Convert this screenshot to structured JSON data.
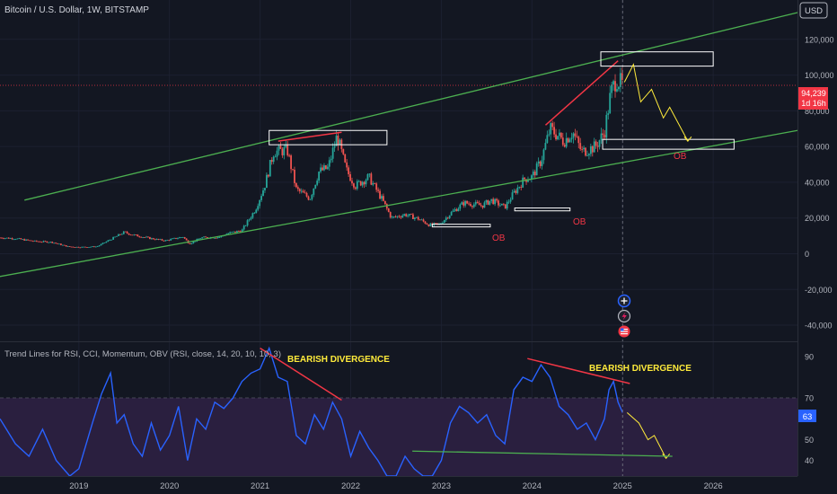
{
  "header": {
    "symbol_title": "Bitcoin / U.S. Dollar, 1W, BITSTAMP",
    "currency_button": "USD"
  },
  "price_panel": {
    "last_price": "94,239",
    "countdown": "1d 16h",
    "ob_labels": [
      "OB",
      "OB",
      "OB"
    ],
    "colors": {
      "up": "#26a69a",
      "down": "#ef5350",
      "channel": "#4caf50",
      "divergence": "#f23645",
      "projection": "#ffeb3b",
      "price_badge": "#f23645"
    }
  },
  "indicator_panel": {
    "title": "Trend Lines for RSI, CCI, Momentum, OBV (RSI, close, 14, 20, 10, 10, 3)",
    "annotations": [
      "BEARISH DIVERGENCE",
      "BEARISH DIVERGENCE"
    ],
    "current_value": "63",
    "colors": {
      "line": "#2962ff",
      "zone": "#2a1f3f",
      "level_line": "#787b86"
    }
  },
  "side_icons": [
    "plus-icon",
    "lightning-icon",
    "flag-icon"
  ],
  "chart_data": [
    {
      "type": "candlestick",
      "title": "Bitcoin / U.S. Dollar, 1W, BITSTAMP",
      "y_ticks": [
        "120,000",
        "100,000",
        "80,000",
        "60,000",
        "40,000",
        "20,000",
        "0",
        "-20,000",
        "-40,000"
      ],
      "y_tick_values": [
        120000,
        100000,
        80000,
        60000,
        40000,
        20000,
        0,
        -20000,
        -40000
      ],
      "ylim": [
        -45000,
        140000
      ],
      "x_ticks": [
        "2019",
        "2020",
        "2021",
        "2022",
        "2023",
        "2024",
        "2025",
        "2026"
      ],
      "x_tick_values": [
        2019,
        2020,
        2021,
        2022,
        2023,
        2024,
        2025,
        2026
      ],
      "xlim": [
        2018.13,
        2026.93
      ],
      "series_path": [
        [
          2018.13,
          9000
        ],
        [
          2018.3,
          8500
        ],
        [
          2018.5,
          7000
        ],
        [
          2018.7,
          6500
        ],
        [
          2018.88,
          4000
        ],
        [
          2019.0,
          3700
        ],
        [
          2019.2,
          4000
        ],
        [
          2019.35,
          8000
        ],
        [
          2019.5,
          12000
        ],
        [
          2019.6,
          10500
        ],
        [
          2019.8,
          8500
        ],
        [
          2019.95,
          7300
        ],
        [
          2020.15,
          9500
        ],
        [
          2020.22,
          5500
        ],
        [
          2020.35,
          9000
        ],
        [
          2020.55,
          9300
        ],
        [
          2020.65,
          11500
        ],
        [
          2020.8,
          13000
        ],
        [
          2020.95,
          25000
        ],
        [
          2021.05,
          38000
        ],
        [
          2021.15,
          57000
        ],
        [
          2021.3,
          58000
        ],
        [
          2021.4,
          36000
        ],
        [
          2021.55,
          31000
        ],
        [
          2021.65,
          46000
        ],
        [
          2021.75,
          48000
        ],
        [
          2021.85,
          66000
        ],
        [
          2021.95,
          47000
        ],
        [
          2022.05,
          38000
        ],
        [
          2022.2,
          43000
        ],
        [
          2022.35,
          30000
        ],
        [
          2022.45,
          20000
        ],
        [
          2022.6,
          22000
        ],
        [
          2022.75,
          19500
        ],
        [
          2022.87,
          16000
        ],
        [
          2022.98,
          16500
        ],
        [
          2023.1,
          22500
        ],
        [
          2023.25,
          28500
        ],
        [
          2023.45,
          27000
        ],
        [
          2023.55,
          30000
        ],
        [
          2023.7,
          26000
        ],
        [
          2023.8,
          34000
        ],
        [
          2023.92,
          42000
        ],
        [
          2024.0,
          43000
        ],
        [
          2024.1,
          52000
        ],
        [
          2024.2,
          70000
        ],
        [
          2024.35,
          63000
        ],
        [
          2024.45,
          68000
        ],
        [
          2024.55,
          57000
        ],
        [
          2024.7,
          60000
        ],
        [
          2024.8,
          68000
        ],
        [
          2024.87,
          90000
        ],
        [
          2024.93,
          98000
        ],
        [
          2025.0,
          94239
        ]
      ],
      "projection_path": [
        [
          2025.02,
          96000
        ],
        [
          2025.12,
          106000
        ],
        [
          2025.2,
          85000
        ],
        [
          2025.32,
          92000
        ],
        [
          2025.45,
          76000
        ],
        [
          2025.52,
          82000
        ],
        [
          2025.72,
          63000
        ]
      ],
      "channel_lines": [
        {
          "from": [
            2018.4,
            30000
          ],
          "to": [
            2026.93,
            135000
          ]
        },
        {
          "from": [
            2017.78,
            -16000
          ],
          "to": [
            2026.93,
            69000
          ]
        }
      ],
      "divergence_lines": [
        {
          "from": [
            2021.2,
            63000
          ],
          "to": [
            2021.9,
            68000
          ]
        },
        {
          "from": [
            2024.15,
            72000
          ],
          "to": [
            2024.95,
            108000
          ]
        }
      ],
      "boxes": [
        {
          "x0": 2021.1,
          "x1": 2022.4,
          "y0": 61000,
          "y1": 69000
        },
        {
          "x0": 2023.81,
          "x1": 2024.42,
          "y0": 24000,
          "y1": 25600
        },
        {
          "x0": 2022.9,
          "x1": 2023.54,
          "y0": 15000,
          "y1": 16500
        },
        {
          "x0": 2024.76,
          "x1": 2026.0,
          "y0": 105000,
          "y1": 113000
        },
        {
          "x0": 2024.78,
          "x1": 2026.23,
          "y0": 58500,
          "y1": 64000
        }
      ],
      "last_price": 94239
    },
    {
      "type": "line",
      "title": "Trend Lines for RSI, CCI, Momentum, OBV (RSI, close, 14, 20, 10, 10, 3)",
      "y_ticks": [
        "90",
        "70",
        "60",
        "50",
        "40"
      ],
      "y_tick_values": [
        90,
        70,
        60,
        50,
        40
      ],
      "ylim": [
        32.5,
        96
      ],
      "zone": [
        30,
        70
      ],
      "current_value": 63,
      "x": [
        2018.13,
        2018.3,
        2018.45,
        2018.6,
        2018.75,
        2018.9,
        2019.0,
        2019.15,
        2019.25,
        2019.35,
        2019.42,
        2019.5,
        2019.6,
        2019.7,
        2019.8,
        2019.9,
        2020.0,
        2020.1,
        2020.2,
        2020.3,
        2020.4,
        2020.5,
        2020.6,
        2020.7,
        2020.8,
        2020.9,
        2021.0,
        2021.1,
        2021.2,
        2021.3,
        2021.4,
        2021.5,
        2021.6,
        2021.7,
        2021.8,
        2021.9,
        2022.0,
        2022.1,
        2022.2,
        2022.3,
        2022.4,
        2022.5,
        2022.6,
        2022.7,
        2022.8,
        2022.9,
        2023.0,
        2023.1,
        2023.2,
        2023.3,
        2023.4,
        2023.5,
        2023.6,
        2023.7,
        2023.8,
        2023.9,
        2024.0,
        2024.1,
        2024.2,
        2024.3,
        2024.4,
        2024.5,
        2024.6,
        2024.7,
        2024.8,
        2024.85,
        2024.9,
        2024.95,
        2025.0
      ],
      "y": [
        60,
        48,
        42,
        55,
        40,
        30,
        36,
        58,
        72,
        82,
        58,
        62,
        48,
        42,
        58,
        45,
        52,
        66,
        40,
        60,
        55,
        68,
        65,
        70,
        78,
        82,
        84,
        94,
        80,
        78,
        52,
        48,
        62,
        55,
        68,
        60,
        42,
        54,
        46,
        40,
        30,
        32,
        42,
        36,
        30,
        28,
        40,
        58,
        66,
        63,
        58,
        62,
        52,
        48,
        74,
        80,
        78,
        86,
        80,
        66,
        62,
        55,
        58,
        50,
        60,
        74,
        78,
        68,
        63
      ],
      "projection": [
        [
          2025.05,
          63
        ],
        [
          2025.18,
          58
        ],
        [
          2025.28,
          50
        ],
        [
          2025.35,
          52
        ],
        [
          2025.48,
          41
        ]
      ],
      "divergence_line": {
        "from": [
          2023.95,
          89
        ],
        "to": [
          2025.08,
          77
        ]
      },
      "support_line": {
        "from": [
          2022.68,
          44.5
        ],
        "to": [
          2025.55,
          42
        ]
      }
    }
  ]
}
